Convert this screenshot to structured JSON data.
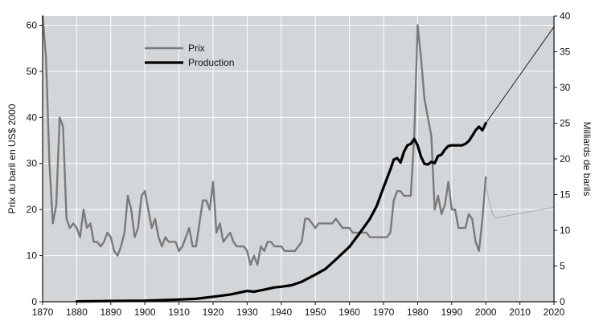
{
  "chart_data": {
    "type": "line",
    "xlim": [
      1870,
      2020
    ],
    "x_ticks": [
      "1870",
      "1880",
      "1890",
      "1900",
      "1910",
      "1920",
      "1930",
      "1940",
      "1950",
      "1960",
      "1970",
      "1980",
      "1990",
      "2000",
      "2010",
      "2020"
    ],
    "left_axis": {
      "label": "Prix du baril en US$ 2000",
      "range": [
        0,
        62
      ],
      "ticks": [
        "0",
        "10",
        "20",
        "30",
        "40",
        "50",
        "60"
      ]
    },
    "right_axis": {
      "label": "Milliards de barils",
      "range": [
        0,
        40
      ],
      "ticks": [
        "0",
        "5",
        "10",
        "15",
        "20",
        "25",
        "30",
        "35",
        "40"
      ]
    },
    "legend": {
      "placement": "top-left",
      "labels": [
        "Prix",
        "Production"
      ]
    },
    "grid": true,
    "colors": {
      "prix": "#7a7a7a",
      "production": "#000000",
      "plot_bg": "#d3d6d9"
    },
    "series": [
      {
        "name": "Prix",
        "axis": "left",
        "x": [
          1870,
          1871,
          1872,
          1873,
          1874,
          1875,
          1876,
          1877,
          1878,
          1879,
          1880,
          1881,
          1882,
          1883,
          1884,
          1885,
          1886,
          1887,
          1888,
          1889,
          1890,
          1891,
          1892,
          1893,
          1894,
          1895,
          1896,
          1897,
          1898,
          1899,
          1900,
          1901,
          1902,
          1903,
          1904,
          1905,
          1906,
          1907,
          1908,
          1909,
          1910,
          1911,
          1912,
          1913,
          1914,
          1915,
          1916,
          1917,
          1918,
          1919,
          1920,
          1921,
          1922,
          1923,
          1924,
          1925,
          1926,
          1927,
          1928,
          1929,
          1930,
          1931,
          1932,
          1933,
          1934,
          1935,
          1936,
          1937,
          1938,
          1939,
          1940,
          1941,
          1942,
          1943,
          1944,
          1945,
          1946,
          1947,
          1948,
          1949,
          1950,
          1951,
          1952,
          1953,
          1954,
          1955,
          1956,
          1957,
          1958,
          1959,
          1960,
          1961,
          1962,
          1963,
          1964,
          1965,
          1966,
          1967,
          1968,
          1969,
          1970,
          1971,
          1972,
          1973,
          1974,
          1975,
          1976,
          1977,
          1978,
          1979,
          1980,
          1981,
          1982,
          1983,
          1984,
          1985,
          1986,
          1987,
          1988,
          1989,
          1990,
          1991,
          1992,
          1993,
          1994,
          1995,
          1996,
          1997,
          1998,
          1999,
          2000
        ],
        "values": [
          62,
          53,
          30,
          17,
          21,
          40,
          38,
          18,
          16,
          17,
          16,
          14,
          20,
          16,
          17,
          13,
          13,
          12,
          13,
          15,
          14,
          11,
          10,
          12,
          15,
          23,
          20,
          14,
          16,
          23,
          24,
          20,
          16,
          18,
          14,
          12,
          14,
          13,
          13,
          13,
          11,
          12,
          14,
          16,
          12,
          12,
          17,
          22,
          22,
          20,
          26,
          15,
          17,
          13,
          14,
          15,
          13,
          12,
          12,
          12,
          11,
          8,
          10,
          8,
          12,
          11,
          13,
          13,
          12,
          12,
          12,
          11,
          11,
          11,
          11,
          12,
          13,
          18,
          18,
          17,
          16,
          17,
          17,
          17,
          17,
          17,
          18,
          17,
          16,
          16,
          16,
          15,
          15,
          15,
          15,
          15,
          14,
          14,
          14,
          14,
          14,
          14,
          15,
          22,
          24,
          24,
          23,
          23,
          23,
          36,
          60,
          53,
          44,
          40,
          36,
          20,
          23,
          19,
          21,
          26,
          20,
          20,
          16,
          16,
          16,
          19,
          18,
          13,
          11,
          18,
          27
        ]
      },
      {
        "name": "Production",
        "axis": "right",
        "x": [
          1880,
          1890,
          1900,
          1910,
          1915,
          1920,
          1925,
          1930,
          1932,
          1935,
          1938,
          1940,
          1943,
          1946,
          1950,
          1953,
          1956,
          1960,
          1963,
          1966,
          1968,
          1970,
          1972,
          1973,
          1974,
          1975,
          1976,
          1977,
          1978,
          1979,
          1980,
          1981,
          1982,
          1983,
          1984,
          1985,
          1986,
          1987,
          1988,
          1989,
          1990,
          1991,
          1992,
          1993,
          1994,
          1995,
          1996,
          1997,
          1998,
          1999,
          2000
        ],
        "values": [
          0.05,
          0.1,
          0.15,
          0.3,
          0.4,
          0.7,
          1.0,
          1.5,
          1.4,
          1.7,
          2.0,
          2.1,
          2.3,
          2.8,
          3.8,
          4.6,
          5.9,
          7.7,
          9.6,
          11.6,
          13.4,
          16.0,
          18.5,
          19.9,
          20.1,
          19.5,
          21.0,
          21.9,
          22.1,
          22.8,
          21.9,
          20.3,
          19.3,
          19.2,
          19.6,
          19.4,
          20.4,
          20.6,
          21.3,
          21.8,
          21.9,
          21.9,
          21.9,
          21.9,
          22.1,
          22.5,
          23.2,
          24.0,
          24.5,
          24.0,
          25.0
        ]
      }
    ]
  }
}
